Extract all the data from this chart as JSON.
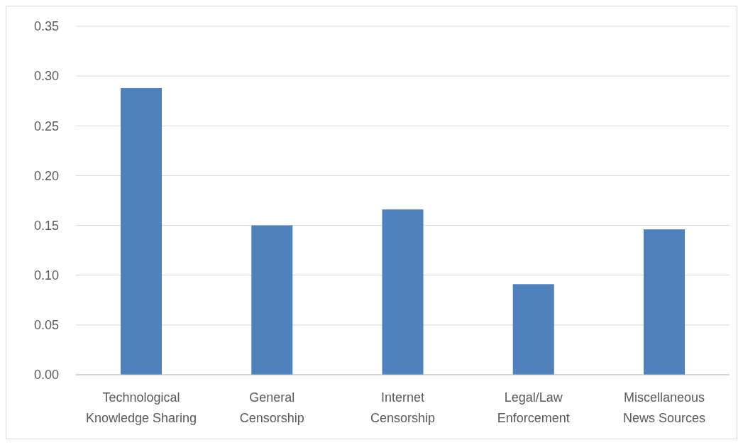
{
  "chart_data": {
    "type": "bar",
    "categories": [
      "Technological Knowledge Sharing",
      "General Censorship",
      "Internet Censorship",
      "Legal/Law Enforcement",
      "Miscellaneous News Sources"
    ],
    "values": [
      0.288,
      0.15,
      0.166,
      0.091,
      0.146
    ],
    "color": "#4f81bd",
    "ylim": [
      0,
      0.35
    ],
    "yticks": [
      {
        "value": 0,
        "label": "0.00"
      },
      {
        "value": 0.05,
        "label": "0.05"
      },
      {
        "value": 0.1,
        "label": "0.10"
      },
      {
        "value": 0.15,
        "label": "0.15"
      },
      {
        "value": 0.2,
        "label": "0.20"
      },
      {
        "value": 0.25,
        "label": "0.25"
      },
      {
        "value": 0.3,
        "label": "0.30"
      },
      {
        "value": 0.35,
        "label": "0.35"
      }
    ],
    "grid": true
  }
}
